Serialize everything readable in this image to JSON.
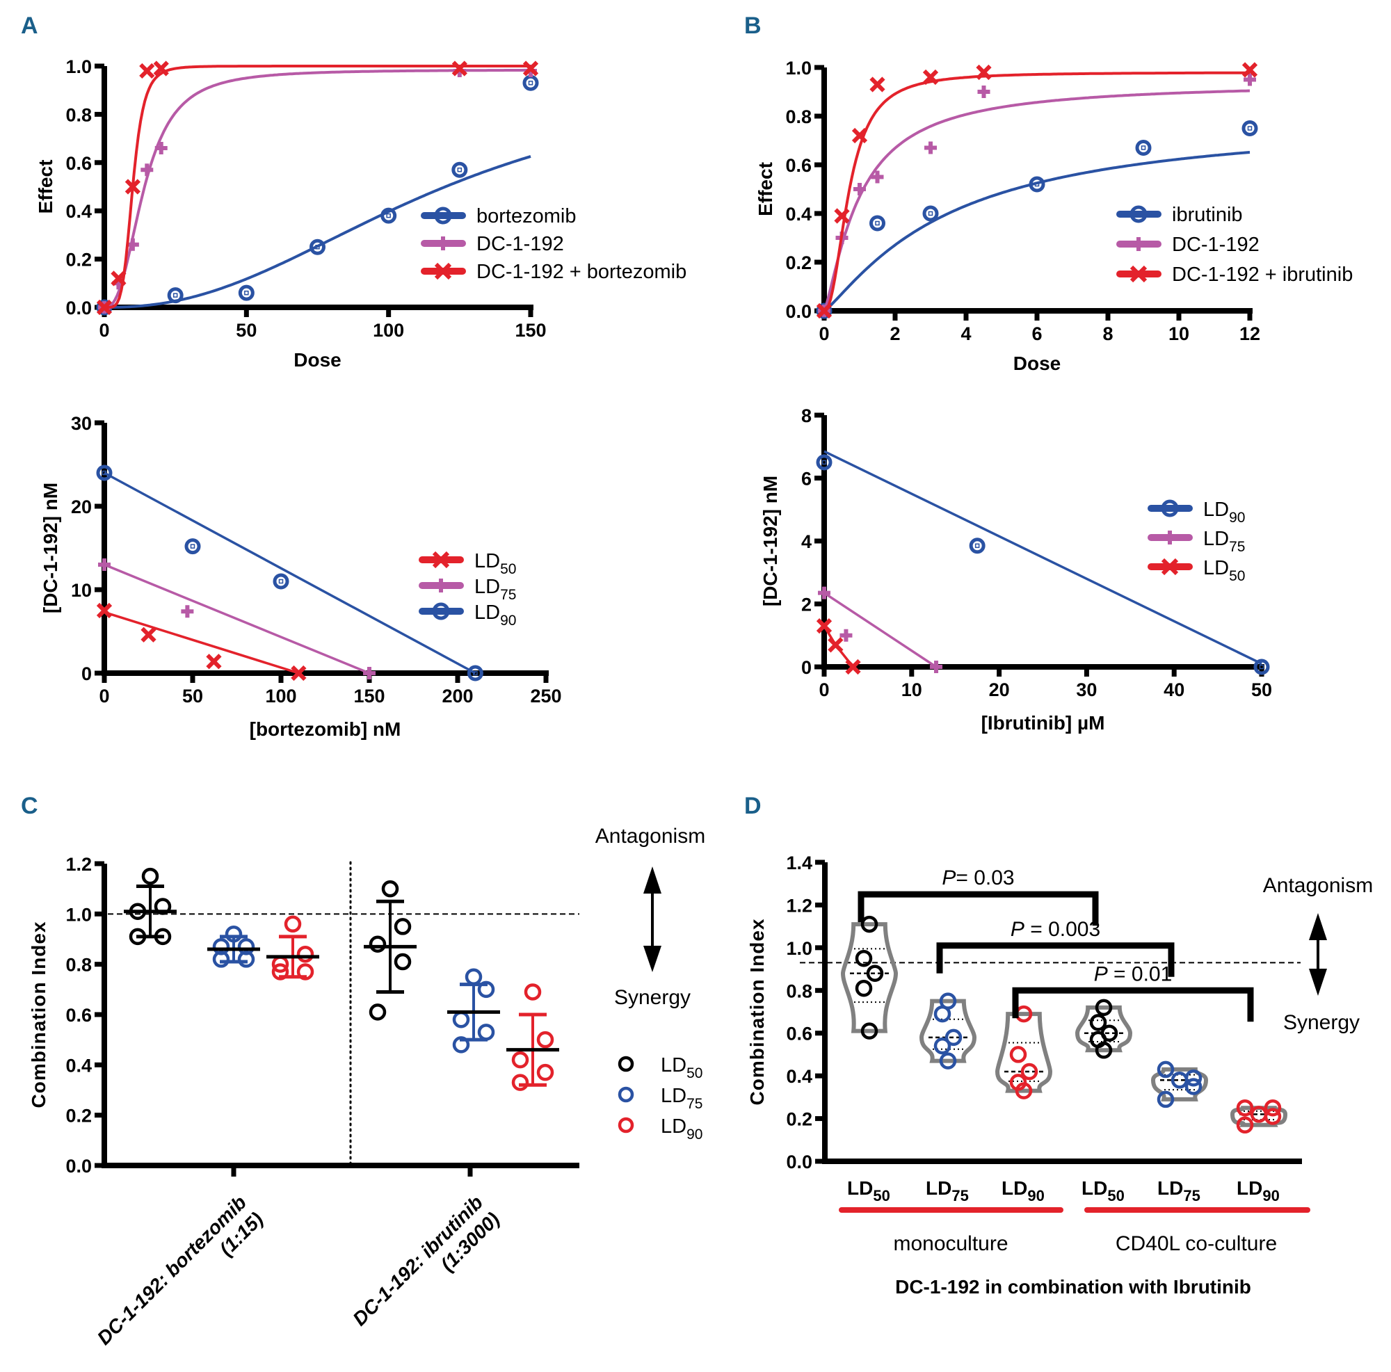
{
  "panels": {
    "A": "A",
    "B": "B",
    "C": "C",
    "D": "D"
  },
  "colors": {
    "blue": "#2a52a3",
    "magenta": "#b75aa6",
    "red": "#e3222b",
    "black": "#000000",
    "gray": "#7a7a7a",
    "panel_letter": "#1a5f8a"
  },
  "chart_data": [
    {
      "id": "A-dose-response",
      "type": "line",
      "title": "",
      "xlabel": "Dose",
      "ylabel": "Effect",
      "xlim": [
        0,
        150
      ],
      "ylim": [
        0,
        1.0
      ],
      "xticks": [
        0,
        50,
        100,
        150
      ],
      "yticks": [
        0.0,
        0.2,
        0.4,
        0.6,
        0.8,
        1.0
      ],
      "legend_position": "right",
      "series": [
        {
          "name": "bortezomib",
          "color": "blue",
          "marker": "circle",
          "x": [
            0,
            25,
            50,
            75,
            100,
            125,
            150
          ],
          "y": [
            0.0,
            0.05,
            0.06,
            0.25,
            0.38,
            0.57,
            0.93
          ],
          "fit": {
            "kind": "hill",
            "top": 1.0,
            "ec50": 120,
            "n": 2.3
          }
        },
        {
          "name": "DC-1-192",
          "color": "magenta",
          "marker": "plus",
          "x": [
            0,
            5,
            10,
            15,
            20,
            125,
            150
          ],
          "y": [
            0.0,
            0.1,
            0.26,
            0.57,
            0.66,
            0.98,
            0.98
          ],
          "fit": {
            "kind": "hill",
            "top": 0.985,
            "ec50": 14,
            "n": 2.6
          }
        },
        {
          "name": "DC-1-192 + bortezomib",
          "color": "red",
          "marker": "x",
          "x": [
            0,
            5,
            10,
            15,
            20,
            125,
            150
          ],
          "y": [
            0.0,
            0.12,
            0.5,
            0.98,
            0.99,
            0.99,
            0.99
          ],
          "fit": {
            "kind": "hill",
            "top": 1.0,
            "ec50": 10,
            "n": 5
          }
        }
      ]
    },
    {
      "id": "B-dose-response",
      "type": "line",
      "title": "",
      "xlabel": "Dose",
      "ylabel": "Effect",
      "xlim": [
        0,
        12
      ],
      "ylim": [
        0,
        1.0
      ],
      "xticks": [
        0,
        2,
        4,
        6,
        8,
        10,
        12
      ],
      "yticks": [
        0.0,
        0.2,
        0.4,
        0.6,
        0.8,
        1.0
      ],
      "legend_position": "right",
      "series": [
        {
          "name": "ibrutinib",
          "color": "blue",
          "marker": "circle",
          "x": [
            0,
            1.5,
            3,
            6,
            9,
            12
          ],
          "y": [
            0.0,
            0.36,
            0.4,
            0.52,
            0.67,
            0.75
          ],
          "fit": {
            "kind": "hill",
            "top": 0.8,
            "ec50": 3.5,
            "n": 1.2
          }
        },
        {
          "name": "DC-1-192",
          "color": "magenta",
          "marker": "plus",
          "x": [
            0,
            0.5,
            1,
            1.5,
            3,
            4.5,
            12
          ],
          "y": [
            0.0,
            0.3,
            0.5,
            0.55,
            0.67,
            0.9,
            0.95
          ],
          "fit": {
            "kind": "hill",
            "top": 0.94,
            "ec50": 1.0,
            "n": 1.3
          }
        },
        {
          "name": "DC-1-192 + ibrutinib",
          "color": "red",
          "marker": "x",
          "x": [
            0,
            0.5,
            1,
            1.5,
            3,
            4.5,
            12
          ],
          "y": [
            0.0,
            0.39,
            0.72,
            0.93,
            0.96,
            0.98,
            0.99
          ],
          "fit": {
            "kind": "hill",
            "top": 0.98,
            "ec50": 0.7,
            "n": 2.2
          }
        }
      ]
    },
    {
      "id": "A-isobologram",
      "type": "scatter",
      "title": "",
      "xlabel": "[bortezomib] nM",
      "ylabel": "[DC-1-192] nM",
      "xlim": [
        0,
        250
      ],
      "ylim": [
        0,
        30
      ],
      "xticks": [
        0,
        50,
        100,
        150,
        200,
        250
      ],
      "yticks": [
        0,
        10,
        20,
        30
      ],
      "legend_position": "right",
      "series": [
        {
          "name": "LD50",
          "sub": "50",
          "color": "red",
          "marker": "x",
          "line": [
            [
              0,
              7.3
            ],
            [
              110,
              0
            ]
          ],
          "points": [
            [
              0,
              7.5
            ],
            [
              25,
              4.6
            ],
            [
              62,
              1.4
            ],
            [
              110,
              0
            ]
          ]
        },
        {
          "name": "LD75",
          "sub": "75",
          "color": "magenta",
          "marker": "plus",
          "line": [
            [
              0,
              13
            ],
            [
              150,
              0
            ]
          ],
          "points": [
            [
              0,
              13
            ],
            [
              47,
              7.4
            ],
            [
              150,
              0
            ]
          ]
        },
        {
          "name": "LD90",
          "sub": "90",
          "color": "blue",
          "marker": "circle",
          "line": [
            [
              0,
              24
            ],
            [
              210,
              0
            ]
          ],
          "points": [
            [
              0,
              24
            ],
            [
              50,
              15.2
            ],
            [
              100,
              11
            ],
            [
              210,
              0
            ]
          ]
        }
      ]
    },
    {
      "id": "B-isobologram",
      "type": "scatter",
      "title": "",
      "xlabel": "[Ibrutinib] µM",
      "ylabel": "[DC-1-192] nM",
      "xlim": [
        0,
        50
      ],
      "ylim": [
        0,
        8
      ],
      "xticks": [
        0,
        10,
        20,
        30,
        40,
        50
      ],
      "yticks": [
        0,
        2,
        4,
        6,
        8
      ],
      "legend_position": "right",
      "series": [
        {
          "name": "LD90",
          "sub": "90",
          "color": "blue",
          "marker": "circle",
          "line": [
            [
              0,
              6.85
            ],
            [
              50,
              0.1
            ]
          ],
          "points": [
            [
              0,
              6.5
            ],
            [
              17.5,
              3.85
            ],
            [
              50,
              0
            ]
          ]
        },
        {
          "name": "LD75",
          "sub": "75",
          "color": "magenta",
          "marker": "plus",
          "line": [
            [
              0,
              2.35
            ],
            [
              12.8,
              0
            ]
          ],
          "points": [
            [
              0,
              2.35
            ],
            [
              2.5,
              1.0
            ],
            [
              12.8,
              0
            ]
          ]
        },
        {
          "name": "LD50",
          "sub": "50",
          "color": "red",
          "marker": "x",
          "line": [
            [
              0,
              1.3
            ],
            [
              1.3,
              0.7
            ],
            [
              3.3,
              0
            ]
          ],
          "points": [
            [
              0,
              1.3
            ],
            [
              1.3,
              0.7
            ],
            [
              3.3,
              0
            ]
          ]
        }
      ]
    },
    {
      "id": "C-combination-index",
      "type": "scatter",
      "title": "",
      "xlabel": "",
      "ylabel": "Combination Index",
      "ylim": [
        0,
        1.2
      ],
      "yticks": [
        0.0,
        0.2,
        0.4,
        0.6,
        0.8,
        1.0,
        1.2
      ],
      "reference_line": 1.0,
      "categories": [
        "DC-1-192: bortezomib\n(1:15)",
        "DC-1-192: ibrutinib\n(1:3000)"
      ],
      "category_lines": [
        [
          "DC-1-192: bortezomib",
          "(1:15)"
        ],
        [
          "DC-1-192: ibrutinib",
          "(1:3000)"
        ]
      ],
      "legend_position": "right",
      "annotations": {
        "top": "Antagonism",
        "bottom": "Synergy"
      },
      "series": [
        {
          "name": "LD50",
          "sub": "50",
          "color": "black",
          "groups": [
            {
              "values": [
                1.15,
                1.03,
                1.01,
                0.91,
                0.91
              ],
              "mean": 1.01,
              "sd_low": 0.91,
              "sd_high": 1.11
            },
            {
              "values": [
                1.1,
                0.95,
                0.88,
                0.81,
                0.61
              ],
              "mean": 0.87,
              "sd_low": 0.69,
              "sd_high": 1.05
            }
          ]
        },
        {
          "name": "LD75",
          "sub": "75",
          "color": "blue",
          "groups": [
            {
              "values": [
                0.92,
                0.87,
                0.87,
                0.82,
                0.82
              ],
              "mean": 0.86,
              "sd_low": 0.81,
              "sd_high": 0.91
            },
            {
              "values": [
                0.75,
                0.7,
                0.58,
                0.53,
                0.48
              ],
              "mean": 0.61,
              "sd_low": 0.5,
              "sd_high": 0.72
            }
          ]
        },
        {
          "name": "LD90",
          "sub": "90",
          "color": "red",
          "groups": [
            {
              "values": [
                0.96,
                0.84,
                0.8,
                0.77,
                0.77
              ],
              "mean": 0.83,
              "sd_low": 0.75,
              "sd_high": 0.91
            },
            {
              "values": [
                0.69,
                0.5,
                0.42,
                0.37,
                0.33
              ],
              "mean": 0.46,
              "sd_low": 0.32,
              "sd_high": 0.6
            }
          ]
        }
      ]
    },
    {
      "id": "D-combination-index",
      "type": "scatter",
      "title": "DC-1-192 in combination with Ibrutinib",
      "xlabel": "DC-1-192 in combination with Ibrutinib",
      "ylabel": "Combination Index",
      "ylim": [
        0,
        1.4
      ],
      "yticks": [
        0.0,
        0.2,
        0.4,
        0.6,
        0.8,
        1.0,
        1.2,
        1.4
      ],
      "reference_line": 0.93,
      "annotations": {
        "top": "Antagonism",
        "bottom": "Synergy"
      },
      "group_labels": [
        "monoculture",
        "CD40L co-culture"
      ],
      "comparisons": [
        {
          "from": 0,
          "to": 3,
          "label": "P= 0.03",
          "level": 1.25
        },
        {
          "from": 1,
          "to": 4,
          "label": "P = 0.003",
          "level": 1.01
        },
        {
          "from": 2,
          "to": 5,
          "label": "P = 0.01",
          "level": 0.8
        }
      ],
      "categories": [
        {
          "label": "LD",
          "sub": "50",
          "group": "monoculture",
          "color": "black",
          "values": [
            1.11,
            0.95,
            0.88,
            0.81,
            0.61
          ],
          "median": 0.88
        },
        {
          "label": "LD",
          "sub": "75",
          "group": "monoculture",
          "color": "blue",
          "values": [
            0.75,
            0.69,
            0.58,
            0.54,
            0.47
          ],
          "median": 0.58
        },
        {
          "label": "LD",
          "sub": "90",
          "group": "monoculture",
          "color": "red",
          "values": [
            0.69,
            0.5,
            0.42,
            0.37,
            0.33
          ],
          "median": 0.42
        },
        {
          "label": "LD",
          "sub": "50",
          "group": "CD40L co-culture",
          "color": "black",
          "values": [
            0.72,
            0.65,
            0.6,
            0.57,
            0.52
          ],
          "median": 0.6
        },
        {
          "label": "LD",
          "sub": "75",
          "group": "CD40L co-culture",
          "color": "blue",
          "values": [
            0.43,
            0.39,
            0.38,
            0.35,
            0.29
          ],
          "median": 0.38
        },
        {
          "label": "LD",
          "sub": "90",
          "group": "CD40L co-culture",
          "color": "red",
          "values": [
            0.25,
            0.25,
            0.22,
            0.21,
            0.17
          ],
          "median": 0.22
        }
      ]
    }
  ]
}
